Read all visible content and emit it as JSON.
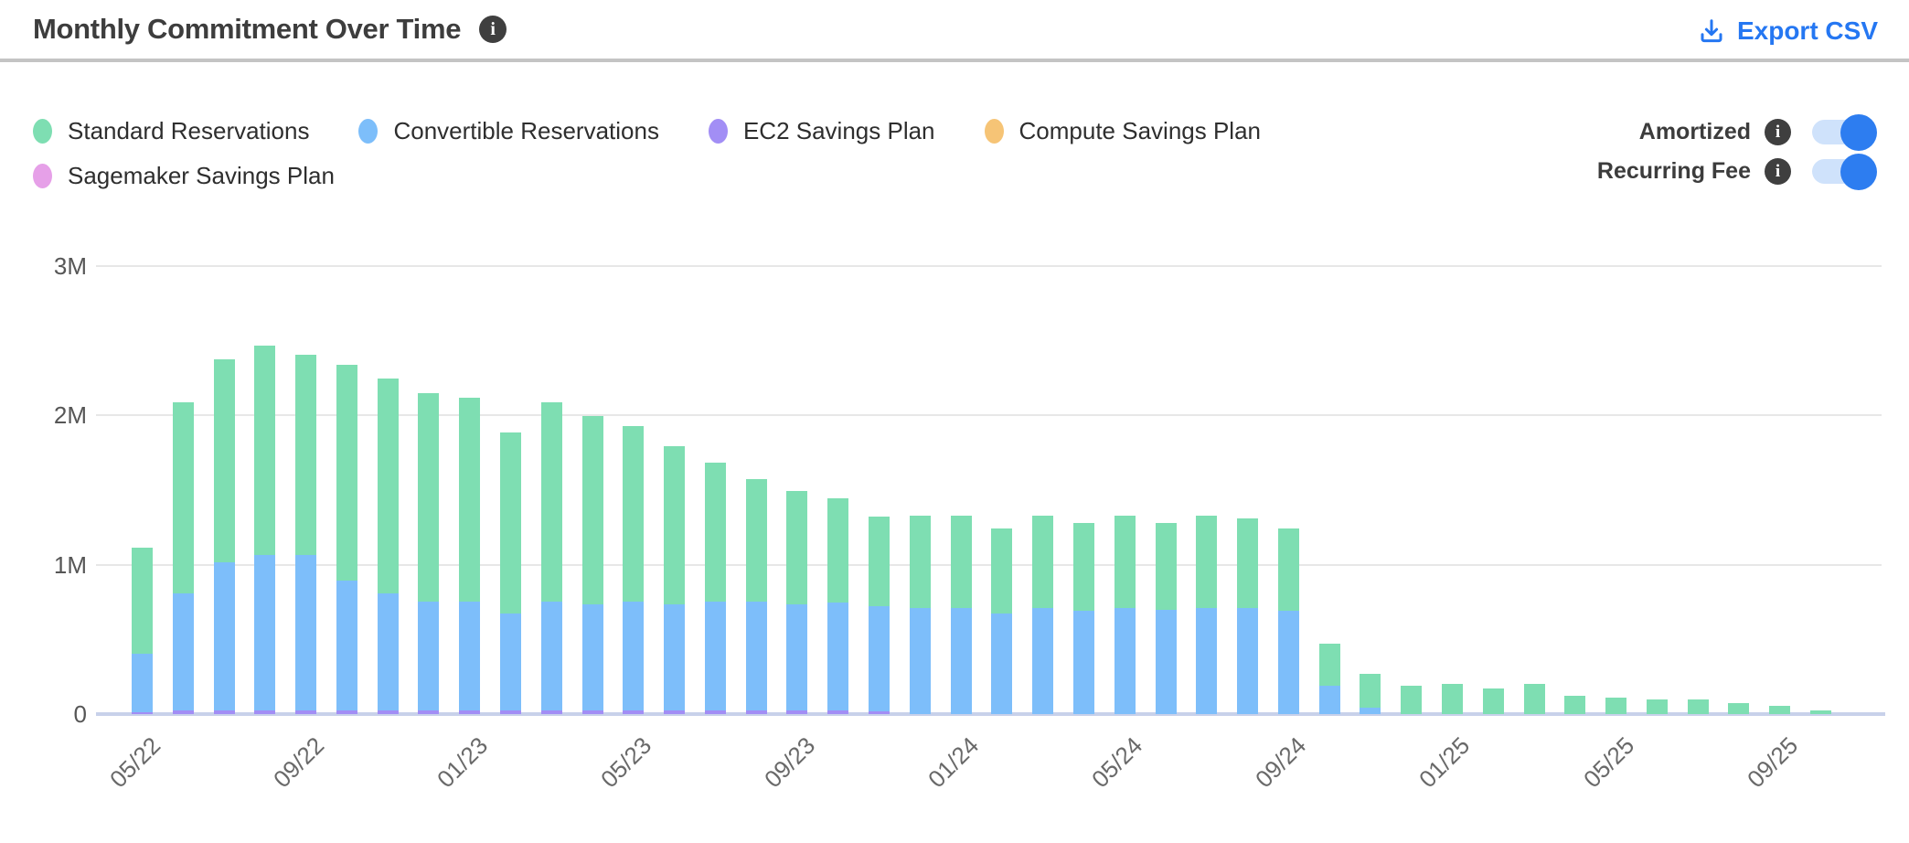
{
  "header": {
    "title": "Monthly Commitment Over Time",
    "export_label": "Export CSV"
  },
  "icons": {
    "info": "i"
  },
  "legend": {
    "items": [
      {
        "label": "Standard Reservations"
      },
      {
        "label": "Convertible Reservations"
      },
      {
        "label": "EC2 Savings Plan"
      },
      {
        "label": "Compute Savings Plan"
      },
      {
        "label": "Sagemaker Savings Plan"
      }
    ]
  },
  "toggles": [
    {
      "label": "Amortized",
      "state": "on"
    },
    {
      "label": "Recurring Fee",
      "state": "on"
    }
  ],
  "colors": {
    "accent_blue": "#2577f2",
    "toggle_track": "#cfe2fb",
    "toggle_knob": "#2d7df0",
    "gridline": "#e7e7e7",
    "axis_line": "#c8d1ea",
    "title_text": "#3d3d3d",
    "divider": "#c4c4c4"
  },
  "chart_data": {
    "type": "bar",
    "stacked": true,
    "unit": "M (millions, monthly commitment)",
    "title": "Monthly Commitment Over Time",
    "xlabel": "",
    "ylabel": "",
    "grid": true,
    "legend_position": "top-left",
    "ylim_m": [
      0,
      3
    ],
    "y_ticks": [
      {
        "label": "0",
        "value": 0
      },
      {
        "label": "1M",
        "value": 1
      },
      {
        "label": "2M",
        "value": 2
      },
      {
        "label": "3M",
        "value": 3
      }
    ],
    "x_label_every": 4,
    "categories": [
      "05/22",
      "06/22",
      "07/22",
      "08/22",
      "09/22",
      "10/22",
      "11/22",
      "12/22",
      "01/23",
      "02/23",
      "03/23",
      "04/23",
      "05/23",
      "06/23",
      "07/23",
      "08/23",
      "09/23",
      "10/23",
      "11/23",
      "12/23",
      "01/24",
      "02/24",
      "03/24",
      "04/24",
      "05/24",
      "06/24",
      "07/24",
      "08/24",
      "09/24",
      "10/24",
      "11/24",
      "12/24",
      "01/25",
      "02/25",
      "03/25",
      "04/25",
      "05/25",
      "06/25",
      "07/25",
      "08/25",
      "09/25",
      "10/25"
    ],
    "series": [
      {
        "name": "Standard Reservations",
        "color": "#7edeb2",
        "values_m": [
          0.71,
          1.28,
          1.36,
          1.4,
          1.34,
          1.44,
          1.44,
          1.39,
          1.36,
          1.21,
          1.33,
          1.26,
          1.17,
          1.06,
          0.93,
          0.82,
          0.76,
          0.7,
          0.6,
          0.62,
          0.62,
          0.57,
          0.62,
          0.59,
          0.62,
          0.58,
          0.62,
          0.6,
          0.55,
          0.28,
          0.23,
          0.19,
          0.2,
          0.17,
          0.2,
          0.12,
          0.11,
          0.1,
          0.1,
          0.075,
          0.055,
          0.025
        ]
      },
      {
        "name": "Convertible Reservations",
        "color": "#7dbefa",
        "values_m": [
          0.39,
          0.78,
          0.99,
          1.04,
          1.04,
          0.87,
          0.78,
          0.73,
          0.73,
          0.65,
          0.73,
          0.71,
          0.73,
          0.71,
          0.73,
          0.73,
          0.71,
          0.72,
          0.7,
          0.71,
          0.71,
          0.67,
          0.71,
          0.69,
          0.71,
          0.7,
          0.71,
          0.71,
          0.69,
          0.19,
          0.04,
          0,
          0,
          0,
          0,
          0,
          0,
          0,
          0,
          0,
          0,
          0
        ]
      },
      {
        "name": "EC2 Savings Plan",
        "color": "#a28ef5",
        "values_m": [
          0.012,
          0.025,
          0.025,
          0.025,
          0.025,
          0.025,
          0.025,
          0.025,
          0.025,
          0.025,
          0.025,
          0.025,
          0.025,
          0.025,
          0.025,
          0.025,
          0.025,
          0.025,
          0.02,
          0,
          0,
          0,
          0,
          0,
          0,
          0,
          0,
          0,
          0,
          0,
          0,
          0,
          0,
          0,
          0,
          0,
          0,
          0,
          0,
          0,
          0,
          0
        ]
      },
      {
        "name": "Compute Savings Plan",
        "color": "#f6c476",
        "values_m": [
          0,
          0,
          0,
          0,
          0,
          0,
          0,
          0,
          0,
          0,
          0,
          0,
          0,
          0,
          0,
          0,
          0,
          0,
          0,
          0,
          0,
          0,
          0,
          0,
          0,
          0,
          0,
          0,
          0,
          0,
          0,
          0,
          0,
          0,
          0,
          0,
          0,
          0,
          0,
          0,
          0,
          0
        ]
      },
      {
        "name": "Sagemaker Savings Plan",
        "color": "#e6a0e8",
        "values_m": [
          0,
          0,
          0,
          0,
          0,
          0,
          0,
          0,
          0,
          0,
          0,
          0,
          0,
          0,
          0,
          0,
          0,
          0,
          0,
          0,
          0,
          0,
          0,
          0,
          0,
          0,
          0,
          0,
          0,
          0,
          0,
          0,
          0,
          0,
          0,
          0,
          0,
          0,
          0,
          0,
          0,
          0
        ]
      }
    ]
  }
}
